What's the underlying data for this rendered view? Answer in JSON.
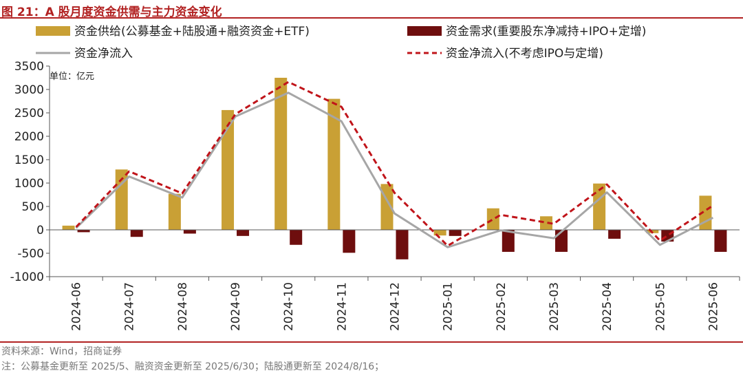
{
  "figure": {
    "title": "图 21：A 股月度资金供需与主力资金变化",
    "unit_note": "单位：亿元",
    "source": "资料来源：Wind，招商证券",
    "note": "注：公募基金更新至 2025/5、融资资金更新至 2025/6/30；陆股通更新至 2024/8/16；"
  },
  "colors": {
    "supply": "#c9a035",
    "demand": "#6e0e0e",
    "net": "#a6a6a6",
    "net_ex": "#c0141a",
    "title": "#b22222"
  },
  "chart_data": {
    "type": "bar",
    "categories": [
      "2024-06",
      "2024-07",
      "2024-08",
      "2024-09",
      "2024-10",
      "2024-11",
      "2024-12",
      "2025-01",
      "2025-02",
      "2025-03",
      "2025-04",
      "2025-05",
      "2025-06"
    ],
    "ylim": [
      -1000,
      3500
    ],
    "yticks": [
      -1000,
      -500,
      0,
      500,
      1000,
      1500,
      2000,
      2500,
      3000,
      3500
    ],
    "grid": false,
    "legend_position": "top",
    "series": [
      {
        "name": "资金供给(公募基金+陆股通+融资资金+ETF)",
        "type": "bar",
        "values": [
          90,
          1290,
          770,
          2560,
          3250,
          2800,
          980,
          -120,
          460,
          290,
          990,
          -70,
          730
        ]
      },
      {
        "name": "资金需求(重要股东净减持+IPO+定增)",
        "type": "bar",
        "values": [
          -50,
          -150,
          -80,
          -130,
          -320,
          -490,
          -630,
          -130,
          -470,
          -470,
          -190,
          -250,
          -470
        ]
      },
      {
        "name": "资金净流入",
        "type": "line",
        "values": [
          40,
          1140,
          690,
          2420,
          2930,
          2320,
          350,
          -370,
          -10,
          -180,
          800,
          -320,
          260
        ]
      },
      {
        "name": "资金净流入(不考虑IPO与定增)",
        "type": "line",
        "values": [
          60,
          1250,
          780,
          2470,
          3160,
          2630,
          790,
          -340,
          320,
          130,
          970,
          -230,
          520
        ]
      }
    ]
  }
}
